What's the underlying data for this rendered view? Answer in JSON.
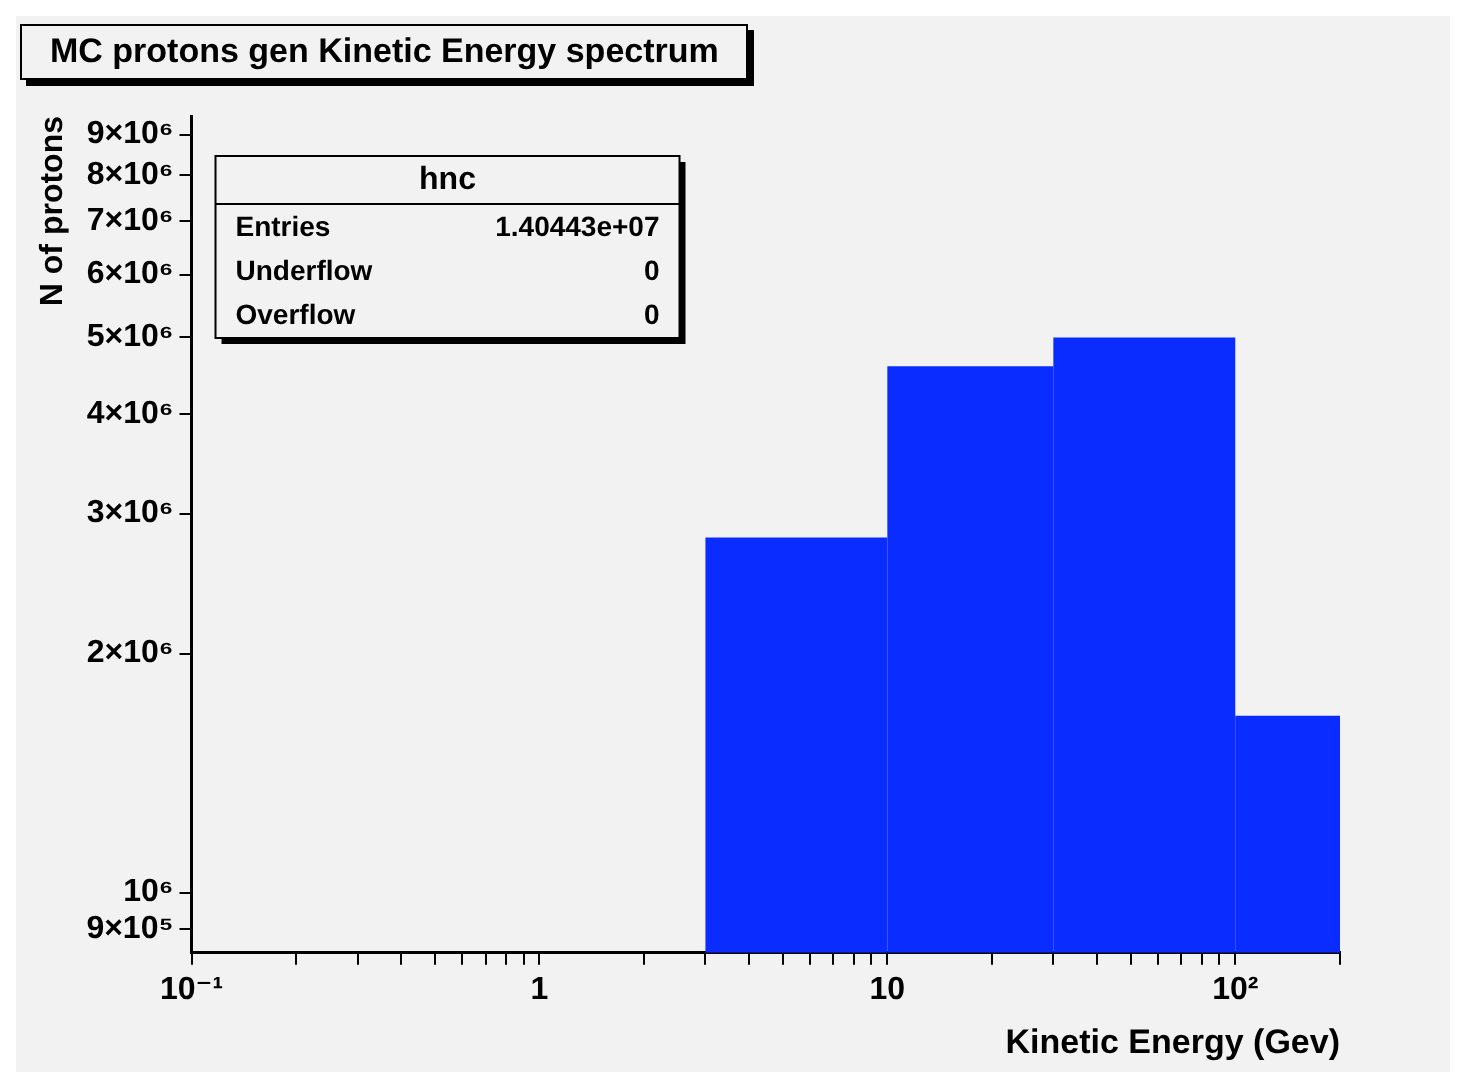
{
  "chart_data": {
    "type": "histogram",
    "title": "MC protons gen Kinetic Energy spectrum",
    "xlabel": "Kinetic Energy (Gev)",
    "ylabel": "N of protons",
    "bins": [
      3,
      10,
      30,
      100,
      200
    ],
    "values": [
      2800000,
      4600000,
      5000000,
      1670000
    ],
    "color": "#0a2cff",
    "log": "xy",
    "xlim": [
      0.1,
      200
    ],
    "xticks": [
      {
        "value": 0.1,
        "label": "10⁻¹"
      },
      {
        "value": 0.2,
        "label": null
      },
      {
        "value": 0.3,
        "label": null
      },
      {
        "value": 0.4,
        "label": null
      },
      {
        "value": 0.5,
        "label": null
      },
      {
        "value": 0.6,
        "label": null
      },
      {
        "value": 0.7,
        "label": null
      },
      {
        "value": 0.8,
        "label": null
      },
      {
        "value": 0.9,
        "label": null
      },
      1,
      {
        "value": 2,
        "label": null
      },
      {
        "value": 3,
        "label": null
      },
      {
        "value": 4,
        "label": null
      },
      {
        "value": 5,
        "label": null
      },
      {
        "value": 6,
        "label": null
      },
      {
        "value": 7,
        "label": null
      },
      {
        "value": 8,
        "label": null
      },
      {
        "value": 9,
        "label": null
      },
      10,
      {
        "value": 20,
        "label": null
      },
      {
        "value": 30,
        "label": null
      },
      {
        "value": 40,
        "label": null
      },
      {
        "value": 50,
        "label": null
      },
      {
        "value": 60,
        "label": null
      },
      {
        "value": 70,
        "label": null
      },
      {
        "value": 80,
        "label": null
      },
      {
        "value": 90,
        "label": null
      },
      {
        "value": 100,
        "label": "10²"
      },
      {
        "value": 200,
        "label": null
      }
    ],
    "ylim": [
      840000,
      9500000
    ],
    "yticks": [
      {
        "value": 900000,
        "label": "9×10⁵"
      },
      {
        "value": 1000000,
        "label": "10⁶"
      },
      {
        "value": 2000000,
        "label": "2×10⁶"
      },
      {
        "value": 3000000,
        "label": "3×10⁶"
      },
      {
        "value": 4000000,
        "label": "4×10⁶"
      },
      {
        "value": 5000000,
        "label": "5×10⁶"
      },
      {
        "value": 6000000,
        "label": "6×10⁶"
      },
      {
        "value": 7000000,
        "label": "7×10⁶"
      },
      {
        "value": 8000000,
        "label": "8×10⁶"
      },
      {
        "value": 9000000,
        "label": "9×10⁶"
      }
    ],
    "grid": false,
    "legend": false,
    "annotations": [
      "hnc",
      "Entries",
      "1.40443e+07",
      "Underflow",
      "0",
      "Overflow",
      "0"
    ]
  }
}
